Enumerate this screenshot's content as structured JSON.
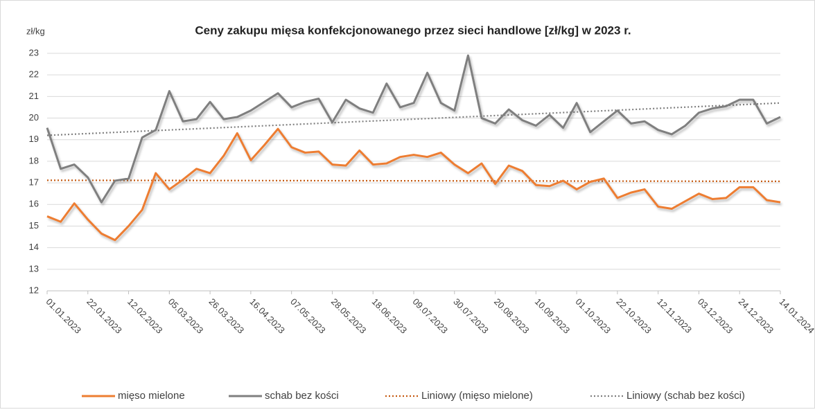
{
  "chart_data": {
    "type": "line",
    "title": "Ceny zakupu mięsa konfekcjonowanego przez sieci handlowe [zł/kg]  w 2023 r.",
    "y_label": "zł/kg",
    "categories": [
      "01.01.2023",
      null,
      null,
      "22.01.2023",
      null,
      null,
      "12.02.2023",
      null,
      null,
      "05.03.2023",
      null,
      null,
      "26.03.2023",
      null,
      null,
      "16.04.2023",
      null,
      null,
      "07.05.2023",
      null,
      null,
      "28.05.2023",
      null,
      null,
      "18.06.2023",
      null,
      null,
      "09.07.2023",
      null,
      null,
      "30.07.2023",
      null,
      null,
      "20.08.2023",
      null,
      null,
      "10.09.2023",
      null,
      null,
      "01.10.2023",
      null,
      null,
      "22.10.2023",
      null,
      null,
      "12.11.2023",
      null,
      null,
      "03.12.2023",
      null,
      null,
      "24.12.2023",
      null,
      null,
      "14.01.2024"
    ],
    "series": [
      {
        "name": "mięso mielone",
        "color": "#ed7d31",
        "values": [
          15.45,
          15.2,
          16.05,
          15.3,
          14.65,
          14.35,
          15.0,
          15.75,
          17.45,
          16.7,
          17.15,
          17.65,
          17.45,
          18.25,
          19.3,
          18.05,
          18.75,
          19.5,
          18.65,
          18.4,
          18.45,
          17.85,
          17.8,
          18.5,
          17.85,
          17.9,
          18.2,
          18.3,
          18.2,
          18.4,
          17.85,
          17.45,
          17.9,
          16.95,
          17.8,
          17.55,
          16.9,
          16.85,
          17.1,
          16.7,
          17.05,
          17.2,
          16.3,
          16.55,
          16.7,
          15.9,
          15.8,
          16.15,
          16.5,
          16.25,
          16.3,
          16.8,
          16.8,
          16.2,
          16.1
        ]
      },
      {
        "name": "schab bez kości",
        "color": "#7f7f7f",
        "values": [
          19.55,
          17.65,
          17.85,
          17.25,
          16.1,
          17.1,
          17.2,
          19.1,
          19.45,
          21.25,
          19.85,
          19.95,
          20.75,
          19.95,
          20.05,
          20.35,
          20.75,
          21.15,
          20.5,
          20.75,
          20.9,
          19.8,
          20.85,
          20.45,
          20.25,
          21.6,
          20.5,
          20.7,
          22.1,
          20.7,
          20.35,
          22.9,
          20.0,
          19.75,
          20.4,
          19.9,
          19.65,
          20.15,
          19.55,
          20.7,
          19.35,
          19.85,
          20.35,
          19.75,
          19.85,
          19.45,
          19.25,
          19.65,
          20.25,
          20.45,
          20.55,
          20.85,
          20.85,
          19.75,
          20.05
        ]
      }
    ],
    "trendlines": [
      {
        "name": "Liniowy (mięso mielone)",
        "color": "#c55a11",
        "start": 17.12,
        "end": 17.07
      },
      {
        "name": "Liniowy (schab bez kości)",
        "color": "#7f7f7f",
        "start": 19.2,
        "end": 20.7
      }
    ],
    "ylim": [
      12,
      23
    ],
    "yticks": [
      12,
      13,
      14,
      15,
      16,
      17,
      18,
      19,
      20,
      21,
      22,
      23
    ],
    "grid": true
  }
}
